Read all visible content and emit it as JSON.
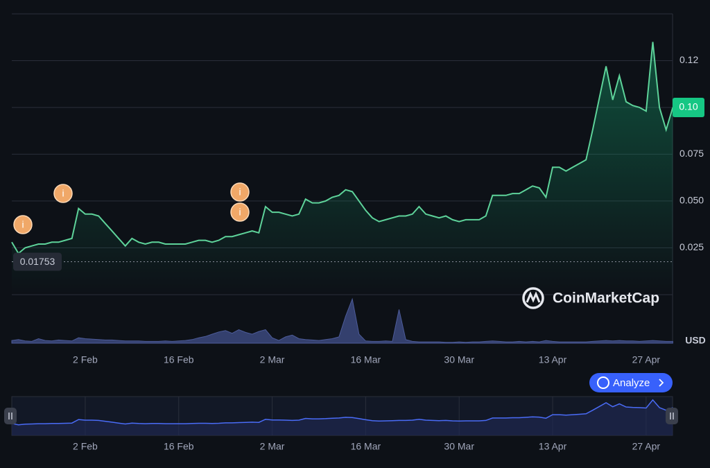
{
  "chart_data": {
    "type": "line",
    "categories": [
      null,
      null,
      null,
      null,
      null,
      null,
      null,
      null,
      null,
      null,
      null,
      "2 Feb",
      null,
      null,
      null,
      null,
      null,
      null,
      null,
      null,
      null,
      null,
      null,
      null,
      null,
      "16 Feb",
      null,
      null,
      null,
      null,
      null,
      null,
      null,
      null,
      null,
      null,
      null,
      null,
      null,
      "2 Mar",
      null,
      null,
      null,
      null,
      null,
      null,
      null,
      null,
      null,
      null,
      null,
      null,
      null,
      "16 Mar",
      null,
      null,
      null,
      null,
      null,
      null,
      null,
      null,
      null,
      null,
      null,
      null,
      null,
      "30 Mar",
      null,
      null,
      null,
      null,
      null,
      null,
      null,
      null,
      null,
      null,
      null,
      null,
      null,
      "13 Apr",
      null,
      null,
      null,
      null,
      null,
      null,
      null,
      null,
      null,
      null,
      null,
      null,
      null,
      "27 Apr",
      null,
      null,
      null,
      null
    ],
    "series": [
      {
        "color": "#5ed39a",
        "values": [
          0.028,
          0.022,
          0.025,
          0.026,
          0.027,
          0.027,
          0.028,
          0.028,
          0.029,
          0.03,
          0.046,
          0.043,
          0.043,
          0.042,
          0.038,
          0.034,
          0.03,
          0.026,
          0.03,
          0.028,
          0.027,
          0.028,
          0.028,
          0.027,
          0.027,
          0.027,
          0.027,
          0.028,
          0.029,
          0.029,
          0.028,
          0.029,
          0.031,
          0.031,
          0.032,
          0.033,
          0.034,
          0.033,
          0.047,
          0.044,
          0.044,
          0.043,
          0.042,
          0.043,
          0.051,
          0.049,
          0.049,
          0.05,
          0.052,
          0.053,
          0.056,
          0.055,
          0.05,
          0.045,
          0.041,
          0.039,
          0.04,
          0.041,
          0.042,
          0.042,
          0.043,
          0.047,
          0.043,
          0.042,
          0.041,
          0.042,
          0.04,
          0.039,
          0.04,
          0.04,
          0.04,
          0.042,
          0.053,
          0.053,
          0.053,
          0.054,
          0.054,
          0.056,
          0.058,
          0.057,
          0.052,
          0.068,
          0.068,
          0.066,
          0.068,
          0.07,
          0.072,
          0.088,
          0.105,
          0.122,
          0.104,
          0.117,
          0.103,
          0.101,
          0.1,
          0.098,
          0.135,
          0.1,
          0.088,
          0.1
        ]
      },
      {
        "color": "#34406e",
        "axis": "y2",
        "values": [
          6,
          8,
          5,
          4,
          10,
          6,
          5,
          7,
          6,
          5,
          12,
          10,
          9,
          8,
          7,
          7,
          6,
          5,
          5,
          5,
          4,
          4,
          4,
          5,
          4,
          5,
          6,
          8,
          12,
          15,
          20,
          25,
          28,
          22,
          30,
          24,
          20,
          26,
          30,
          12,
          6,
          14,
          18,
          10,
          8,
          7,
          6,
          8,
          10,
          14,
          60,
          98,
          20,
          5,
          4,
          4,
          5,
          4,
          75,
          8,
          4,
          3,
          3,
          3,
          3,
          2,
          2,
          3,
          2,
          3,
          3,
          4,
          5,
          4,
          3,
          3,
          4,
          3,
          4,
          3,
          6,
          4,
          3,
          3,
          3,
          3,
          3,
          4,
          5,
          6,
          5,
          6,
          5,
          5,
          4,
          5,
          6,
          5,
          4,
          4
        ]
      }
    ],
    "ylim": [
      -0.026,
      0.15
    ],
    "yticks": [
      0.025,
      {
        "value": 0.05,
        "label": "0.050"
      },
      0.075,
      {
        "value": 0.1,
        "label": "0.10"
      },
      {
        "value": 0.125,
        "label": "0.12"
      }
    ],
    "y2lim": [
      0,
      100
    ],
    "grid": true,
    "low": 0.01753,
    "last_price_label": "0.10",
    "unit": "USD",
    "watermark": "CoinMarketCap",
    "analyze_button": "Analyze",
    "event_markers": [
      "i",
      "i",
      "i",
      "i"
    ]
  }
}
